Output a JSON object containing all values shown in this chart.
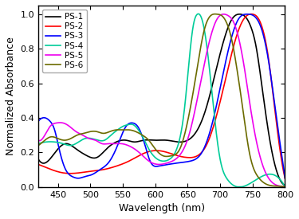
{
  "title": "",
  "xlabel": "Wavelength (nm)",
  "ylabel": "Normalized Absorbance",
  "xlim": [
    420,
    800
  ],
  "ylim": [
    0,
    1.05
  ],
  "xticks": [
    450,
    500,
    550,
    600,
    650,
    700,
    750,
    800
  ],
  "yticks": [
    0.0,
    0.2,
    0.4,
    0.6,
    0.8,
    1.0
  ],
  "series": {
    "PS-1": {
      "color": "#000000",
      "knots_x": [
        420,
        435,
        448,
        462,
        478,
        495,
        510,
        525,
        540,
        555,
        568,
        582,
        600,
        618,
        635,
        650,
        665,
        678,
        692,
        705,
        718,
        730,
        740,
        748,
        755,
        762,
        770,
        780,
        790,
        800
      ],
      "knots_y": [
        0.16,
        0.15,
        0.21,
        0.25,
        0.22,
        0.18,
        0.17,
        0.22,
        0.26,
        0.27,
        0.26,
        0.27,
        0.27,
        0.27,
        0.26,
        0.27,
        0.33,
        0.45,
        0.65,
        0.84,
        0.97,
        1.0,
        0.98,
        0.92,
        0.82,
        0.65,
        0.43,
        0.2,
        0.06,
        0.01
      ]
    },
    "PS-2": {
      "color": "#ff0000",
      "knots_x": [
        420,
        440,
        460,
        480,
        500,
        520,
        540,
        560,
        580,
        600,
        618,
        635,
        650,
        665,
        680,
        695,
        710,
        725,
        738,
        750,
        758,
        765,
        773,
        782,
        792,
        800
      ],
      "knots_y": [
        0.13,
        0.1,
        0.08,
        0.08,
        0.09,
        0.1,
        0.12,
        0.15,
        0.19,
        0.21,
        0.2,
        0.18,
        0.17,
        0.18,
        0.25,
        0.42,
        0.65,
        0.87,
        0.98,
        1.0,
        0.98,
        0.92,
        0.78,
        0.52,
        0.22,
        0.05
      ]
    },
    "PS-3": {
      "color": "#0000ff",
      "knots_x": [
        420,
        430,
        438,
        445,
        452,
        462,
        472,
        482,
        492,
        502,
        515,
        528,
        542,
        555,
        565,
        573,
        582,
        592,
        605,
        620,
        638,
        655,
        672,
        690,
        710,
        728,
        742,
        755,
        765,
        775,
        785,
        795,
        800
      ],
      "knots_y": [
        0.38,
        0.4,
        0.38,
        0.33,
        0.22,
        0.1,
        0.06,
        0.05,
        0.06,
        0.07,
        0.1,
        0.14,
        0.24,
        0.35,
        0.37,
        0.35,
        0.27,
        0.15,
        0.12,
        0.13,
        0.14,
        0.15,
        0.2,
        0.4,
        0.75,
        0.97,
        1.0,
        0.98,
        0.9,
        0.72,
        0.45,
        0.18,
        0.05
      ]
    },
    "PS-4": {
      "color": "#00cc99",
      "knots_x": [
        420,
        432,
        445,
        458,
        470,
        482,
        492,
        502,
        512,
        522,
        532,
        542,
        550,
        558,
        566,
        574,
        582,
        590,
        600,
        610,
        622,
        635,
        645,
        652,
        658,
        665,
        672,
        680,
        690,
        700,
        710,
        720,
        800
      ],
      "knots_y": [
        0.25,
        0.26,
        0.26,
        0.25,
        0.24,
        0.26,
        0.28,
        0.28,
        0.27,
        0.27,
        0.3,
        0.33,
        0.35,
        0.36,
        0.36,
        0.33,
        0.28,
        0.22,
        0.17,
        0.15,
        0.16,
        0.24,
        0.45,
        0.72,
        0.92,
        1.0,
        0.97,
        0.8,
        0.45,
        0.16,
        0.05,
        0.01,
        0.0
      ]
    },
    "PS-5": {
      "color": "#ee00ee",
      "knots_x": [
        420,
        430,
        438,
        448,
        458,
        468,
        478,
        488,
        498,
        508,
        518,
        528,
        538,
        548,
        558,
        568,
        578,
        590,
        605,
        620,
        637,
        652,
        667,
        682,
        695,
        705,
        713,
        720,
        728,
        736,
        745,
        755,
        768,
        782,
        800
      ],
      "knots_y": [
        0.27,
        0.3,
        0.35,
        0.37,
        0.37,
        0.35,
        0.32,
        0.3,
        0.28,
        0.27,
        0.25,
        0.25,
        0.25,
        0.25,
        0.24,
        0.22,
        0.19,
        0.15,
        0.13,
        0.14,
        0.18,
        0.3,
        0.55,
        0.82,
        0.97,
        1.0,
        0.99,
        0.96,
        0.87,
        0.72,
        0.5,
        0.28,
        0.1,
        0.02,
        0.0
      ]
    },
    "PS-6": {
      "color": "#6b6b00",
      "knots_x": [
        420,
        430,
        440,
        450,
        460,
        470,
        480,
        490,
        500,
        510,
        520,
        530,
        540,
        550,
        560,
        570,
        580,
        590,
        600,
        612,
        625,
        638,
        650,
        663,
        675,
        685,
        695,
        703,
        710,
        718,
        726,
        735,
        745,
        758,
        775,
        800
      ],
      "knots_y": [
        0.24,
        0.27,
        0.29,
        0.28,
        0.27,
        0.28,
        0.3,
        0.31,
        0.32,
        0.32,
        0.31,
        0.32,
        0.33,
        0.33,
        0.33,
        0.32,
        0.3,
        0.27,
        0.22,
        0.18,
        0.18,
        0.22,
        0.38,
        0.65,
        0.9,
        0.99,
        1.0,
        0.99,
        0.95,
        0.85,
        0.68,
        0.45,
        0.2,
        0.06,
        0.01,
        0.0
      ]
    }
  },
  "legend_order": [
    "PS-1",
    "PS-2",
    "PS-3",
    "PS-4",
    "PS-5",
    "PS-6"
  ],
  "legend_loc": "upper left",
  "figsize": [
    3.75,
    2.75
  ],
  "dpi": 100
}
